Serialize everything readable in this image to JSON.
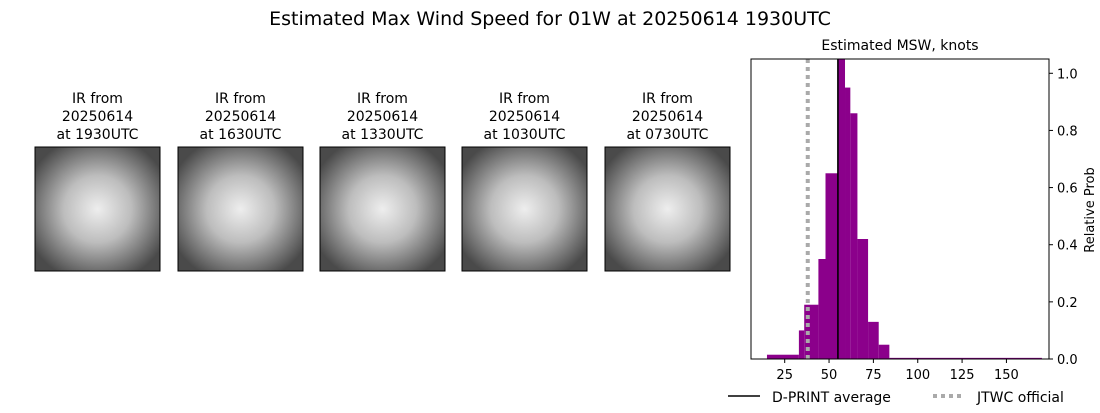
{
  "panels": [
    {
      "title": [
        "IR from",
        "20250614",
        "at 1930UTC"
      ]
    },
    {
      "title": [
        "IR from",
        "20250614",
        "at 1630UTC"
      ]
    },
    {
      "title": [
        "IR from",
        "20250614",
        "at 1330UTC"
      ]
    },
    {
      "title": [
        "IR from",
        "20250614",
        "at 1030UTC"
      ]
    },
    {
      "title": [
        "IR from",
        "20250614",
        "at 0730UTC"
      ]
    }
  ],
  "chart_data": {
    "type": "histogram",
    "title": "Estimated Max Wind Speed for 01W at 20250614 1930UTC",
    "subtitle": "Estimated MSW, knots",
    "y_label": "Relative Prob",
    "bins": [
      15,
      33,
      36,
      44,
      48,
      55,
      59,
      62,
      66,
      72,
      78,
      84,
      170
    ],
    "counts": [
      0.015,
      0.1,
      0.19,
      0.35,
      0.65,
      1.05,
      0.95,
      0.86,
      0.42,
      0.13,
      0.05,
      0.004
    ],
    "color": "#8b008b",
    "xlim": [
      6,
      174
    ],
    "xticks": [
      25,
      50,
      75,
      100,
      125,
      150
    ],
    "ylim": [
      0,
      1.05
    ],
    "yticks": [
      {
        "value": 0,
        "label": "0.0"
      },
      0.2,
      0.4,
      0.6,
      0.8,
      {
        "value": 1,
        "label": "1.0"
      }
    ],
    "lines": [
      {
        "name": "D-PRINT average",
        "value": 55,
        "color": "#000000",
        "style": "solid"
      },
      {
        "name": "JTWC official",
        "value": 38,
        "color": "#aaaaaa",
        "style": "dotted"
      }
    ]
  }
}
